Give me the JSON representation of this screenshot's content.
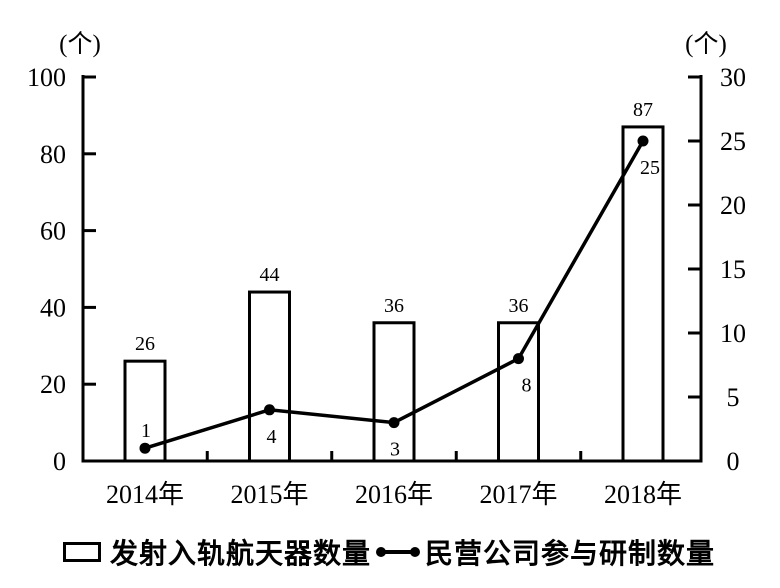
{
  "chart_data": {
    "type": "bar",
    "subtype": "bar+line combo, dual y-axis",
    "categories": [
      "2014年",
      "2015年",
      "2016年",
      "2017年",
      "2018年"
    ],
    "series": [
      {
        "name": "发射入轨航天器数量",
        "type": "bar",
        "axis": "left",
        "values": [
          26,
          44,
          36,
          36,
          87
        ]
      },
      {
        "name": "民营公司参与研制数量",
        "type": "line",
        "axis": "right",
        "values": [
          1,
          4,
          3,
          8,
          25
        ]
      }
    ],
    "left_axis": {
      "unit": "(个)",
      "ticks": [
        0,
        20,
        40,
        60,
        80,
        100
      ],
      "min": 0,
      "max": 100
    },
    "right_axis": {
      "unit": "(个)",
      "ticks": [
        0,
        5,
        10,
        15,
        20,
        25,
        30
      ],
      "min": 0,
      "max": 30
    },
    "grid": "off",
    "legend_position": "bottom",
    "colors": {
      "foreground": "#000000",
      "background": "#ffffff"
    }
  },
  "legend": {
    "bar_label": "发射入轨航天器数量",
    "line_label": "民营公司参与研制数量"
  }
}
